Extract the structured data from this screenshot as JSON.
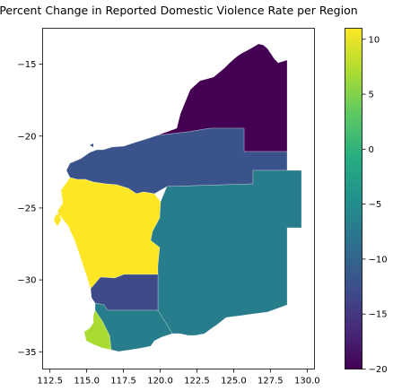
{
  "chart_data": {
    "type": "choropleth",
    "title": "Percent Change in Reported Domestic Violence Rate per Region",
    "xlabel": "",
    "ylabel": "",
    "xlim": [
      112.0,
      130.5
    ],
    "ylim": [
      -36.2,
      -12.5
    ],
    "x_ticks": [
      112.5,
      115.0,
      117.5,
      120.0,
      122.5,
      125.0,
      127.5,
      130.0
    ],
    "x_tick_labels": [
      "112.5",
      "115.0",
      "117.5",
      "120.0",
      "122.5",
      "125.0",
      "127.5",
      "130.0"
    ],
    "y_ticks": [
      -15,
      -20,
      -25,
      -30,
      -35
    ],
    "y_tick_labels": [
      "−15",
      "−20",
      "−25",
      "−30",
      "−35"
    ],
    "colormap": "viridis",
    "colorbar": {
      "min": -20,
      "max": 11,
      "ticks": [
        10,
        5,
        0,
        -5,
        -10,
        -15,
        -20
      ],
      "tick_labels": [
        "10",
        "5",
        "0",
        "−5",
        "−10",
        "−15",
        "−20"
      ]
    },
    "regions": [
      {
        "id": "kimberley",
        "value": -20
      },
      {
        "id": "pilbara",
        "value": -12
      },
      {
        "id": "gascoyne-midwest",
        "value": 11
      },
      {
        "id": "goldfields-esperance",
        "value": -7
      },
      {
        "id": "wheatbelt-north",
        "value": -13
      },
      {
        "id": "wheatbelt-south",
        "value": -7
      },
      {
        "id": "south-west",
        "value": 7
      }
    ]
  }
}
